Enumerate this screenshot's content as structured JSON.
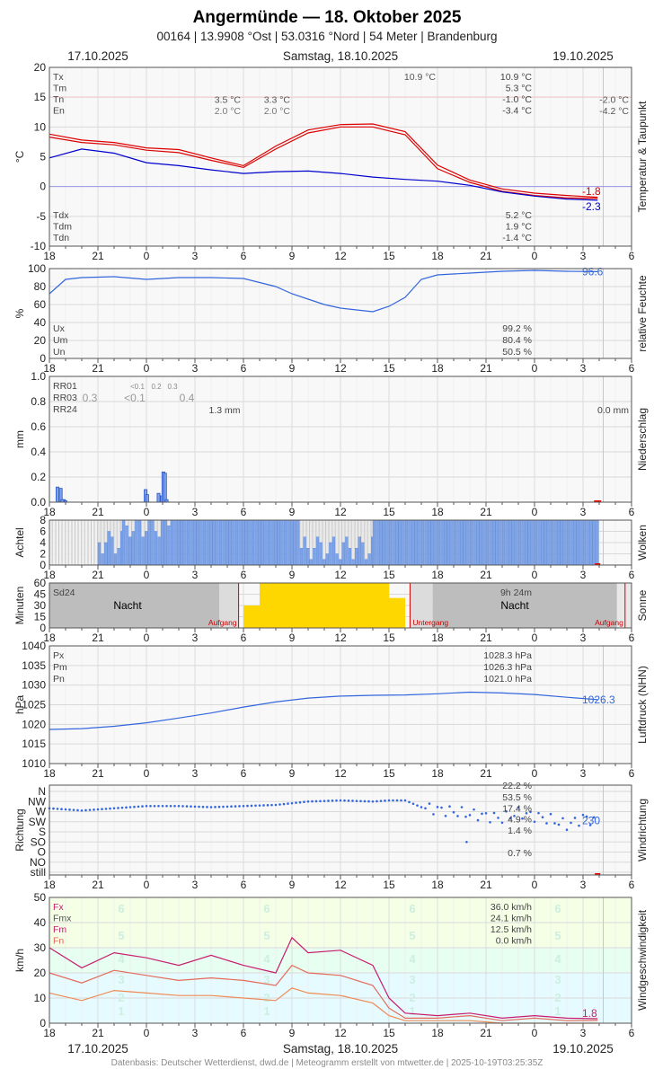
{
  "header": {
    "title": "Angermünde  —  18. Oktober 2025",
    "subtitle": "00164  |  13.9908 °Ost  |  53.0316 °Nord  |  54 Meter  |  Brandenburg",
    "date_left": "17.10.2025",
    "date_center": "Samstag, 18.10.2025",
    "date_right": "19.10.2025"
  },
  "footer": {
    "date_left": "17.10.2025",
    "date_center": "Samstag, 18.10.2025",
    "date_right": "19.10.2025",
    "credits": "Datenbasis: Deutscher Wetterdienst, dwd.de | Meteogramm erstellt von mtwetter.de | 2025-10-19T03:25:35Z"
  },
  "colors": {
    "temp": "#dd0000",
    "dew": "#0000cc",
    "blue": "#3366dd",
    "cloud": "#7ea4e6",
    "sun": "#ffd700",
    "night": "#bdbdbd",
    "gust": "#c81c6e",
    "mean_wind": "#e46a5a",
    "grid": "#d9d9d9"
  },
  "chart_data": [
    {
      "type": "line",
      "name": "temperature",
      "side_label": "Temperatur & Taupunkt",
      "ylabel": "°C",
      "ylim": [
        -10,
        20
      ],
      "yticks": [
        -10,
        -5,
        0,
        5,
        10,
        15,
        20
      ],
      "x": [
        -6,
        -4,
        -2,
        0,
        2,
        4,
        6,
        8,
        10,
        12,
        14,
        16,
        18,
        20,
        22,
        24,
        26,
        27.9
      ],
      "x_tick_labels": [
        "18",
        "21",
        "0",
        "3",
        "6",
        "9",
        "12",
        "15",
        "18",
        "21",
        "0",
        "3",
        "6"
      ],
      "series": [
        {
          "values": [
            8.8,
            7.8,
            7.4,
            6.5,
            6.2,
            4.8,
            3.5,
            6.8,
            9.5,
            10.4,
            10.5,
            9.2,
            3.6,
            1.1,
            -0.4,
            -1.1,
            -1.5,
            -1.8
          ],
          "color": "#dd0000"
        },
        {
          "values": [
            8.3,
            7.4,
            7.0,
            6.1,
            5.7,
            4.4,
            3.2,
            6.3,
            9.0,
            10.0,
            10.0,
            8.7,
            3.0,
            0.7,
            -0.8,
            -1.5,
            -1.9,
            -2.0
          ],
          "color": "#dd0000"
        },
        {
          "values": [
            4.8,
            6.3,
            5.6,
            4.0,
            3.5,
            2.8,
            2.2,
            2.5,
            2.6,
            2.2,
            1.6,
            1.2,
            0.9,
            0.2,
            -0.9,
            -1.6,
            -2.1,
            -2.3
          ],
          "color": "#0000cc"
        }
      ],
      "end_labels": [
        "-1.8",
        "-2.3"
      ],
      "legend_keys": [
        "Tx",
        "Tm",
        "Tn",
        "En"
      ],
      "prev_values": {
        "tn": "3.5 °C",
        "en": "2.0 °C",
        "tn2": "3.3 °C",
        "en2": "2.0 °C"
      },
      "day_max": "10.9 °C",
      "summary": [
        "10.9 °C",
        "5.3 °C",
        "-1.0 °C",
        "-3.4 °C"
      ],
      "next_values": [
        "-2.0 °C",
        "-4.2 °C"
      ],
      "dew_keys": [
        "Tdx",
        "Tdm",
        "Tdn"
      ],
      "dew_summary": [
        "5.2 °C",
        "1.9 °C",
        "-1.4 °C"
      ]
    },
    {
      "type": "line",
      "name": "humidity",
      "side_label": "relative Feuchte",
      "ylabel": "%",
      "ylim": [
        0,
        100
      ],
      "yticks": [
        0,
        20,
        40,
        60,
        80,
        100
      ],
      "x": [
        -6,
        -5,
        -4,
        -2,
        0,
        2,
        4,
        6,
        8,
        9,
        10,
        11,
        12,
        13,
        14,
        15,
        16,
        17,
        18,
        20,
        22,
        24,
        26,
        27.9
      ],
      "x_tick_labels": [
        "18",
        "21",
        "0",
        "3",
        "6",
        "9",
        "12",
        "15",
        "18",
        "21",
        "0",
        "3",
        "6"
      ],
      "series": [
        {
          "values": [
            72,
            88,
            90,
            91,
            88,
            90,
            90,
            89,
            80,
            72,
            66,
            60,
            56,
            54,
            52,
            58,
            68,
            88,
            93,
            95,
            97,
            98,
            97,
            96.6
          ],
          "color": "#3366dd"
        }
      ],
      "end_label": "96.6",
      "legend_keys": [
        "Ux",
        "Um",
        "Un"
      ],
      "summary": [
        "99.2 %",
        "80.4 %",
        "50.5 %"
      ]
    },
    {
      "type": "bar",
      "name": "precipitation",
      "side_label": "Niederschlag",
      "ylabel": "mm",
      "ylim": [
        0,
        1.0
      ],
      "yticks": [
        "0.0",
        "0.2",
        "0.4",
        "0.6",
        "0.8",
        "1.0"
      ],
      "x": [
        -5.5,
        -5.3,
        -5.1,
        -5.0,
        -5.2,
        -0.05,
        0.05,
        0.75,
        0.95,
        1.05,
        1.15,
        1.25
      ],
      "values": [
        0.12,
        0.11,
        0.02,
        0.01,
        0.02,
        0.1,
        0.06,
        0.07,
        0.05,
        0.24,
        0.23,
        0.02
      ],
      "x_tick_labels": [
        "18",
        "21",
        "0",
        "3",
        "6",
        "9",
        "12",
        "15",
        "18",
        "21",
        "0",
        "3",
        "6"
      ],
      "legend_keys": [
        "RR01",
        "RR03",
        "RR24"
      ],
      "rr03_values": [
        "0.3",
        "<0.1",
        "0.4"
      ],
      "rr01_values": [
        "<0.1",
        "0.2",
        "0.3"
      ],
      "rr24_values": [
        "1.3 mm",
        "0.0 mm"
      ]
    },
    {
      "type": "bar",
      "name": "clouds",
      "side_label": "Wolken",
      "ylabel": "Achtel",
      "ylim": [
        0,
        8
      ],
      "yticks": [
        0,
        2,
        4,
        6,
        8
      ],
      "x_tick_labels": [
        "18",
        "21",
        "0",
        "3",
        "6",
        "9",
        "12",
        "15",
        "18",
        "21",
        "0",
        "3",
        "6"
      ],
      "segments": [
        {
          "x": [
            -6,
            -3
          ],
          "value": 8,
          "kind": "clear"
        },
        {
          "x": [
            -3,
            -1.5
          ],
          "value": 4,
          "kind": "mixed"
        },
        {
          "x": [
            -1.5,
            1.5
          ],
          "value": 7,
          "kind": "mixed"
        },
        {
          "x": [
            1.5,
            9.5
          ],
          "value": 8,
          "kind": "cover"
        },
        {
          "x": [
            9.5,
            14
          ],
          "value": 3,
          "kind": "mixed"
        },
        {
          "x": [
            14,
            27.9
          ],
          "value": 8,
          "kind": "cover"
        }
      ]
    },
    {
      "type": "bar",
      "name": "sunshine",
      "side_label": "Sonne",
      "ylabel": "Minuten",
      "ylim": [
        0,
        60
      ],
      "yticks": [
        0,
        15,
        30,
        45,
        60
      ],
      "x_tick_labels": [
        "18",
        "21",
        "0",
        "3",
        "6",
        "9",
        "12",
        "15",
        "18",
        "21",
        "0",
        "3",
        "6"
      ],
      "legend_key": "Sd24",
      "summary": "9h 24m",
      "night_label": "Nacht",
      "sunrise_label": "Aufgang",
      "sunset_label": "Untergang",
      "sunrise": 5.7,
      "sunset": 16.3,
      "sun_hours": [
        {
          "x": [
            6,
            7
          ],
          "value": 30
        },
        {
          "x": [
            7,
            15
          ],
          "value": 60
        },
        {
          "x": [
            15,
            16
          ],
          "value": 40
        }
      ]
    },
    {
      "type": "line",
      "name": "pressure",
      "side_label": "Luftdruck (NHN)",
      "ylabel": "hPa",
      "ylim": [
        1010,
        1040
      ],
      "yticks": [
        1010,
        1015,
        1020,
        1025,
        1030,
        1035,
        1040
      ],
      "x": [
        -6,
        -4,
        -2,
        0,
        2,
        4,
        6,
        8,
        10,
        12,
        14,
        16,
        18,
        20,
        22,
        24,
        26,
        27.9
      ],
      "x_tick_labels": [
        "18",
        "21",
        "0",
        "3",
        "6",
        "9",
        "12",
        "15",
        "18",
        "21",
        "0",
        "3",
        "6"
      ],
      "series": [
        {
          "values": [
            1018.7,
            1018.9,
            1019.5,
            1020.4,
            1021.6,
            1022.9,
            1024.4,
            1025.7,
            1026.7,
            1027.2,
            1027.4,
            1027.5,
            1027.8,
            1028.2,
            1028.0,
            1027.6,
            1026.9,
            1026.3
          ],
          "color": "#3366dd"
        }
      ],
      "end_label": "1026.3",
      "legend_keys": [
        "Px",
        "Pm",
        "Pn"
      ],
      "summary": [
        "1028.3 hPa",
        "1026.3 hPa",
        "1021.0 hPa"
      ]
    },
    {
      "type": "scatter",
      "name": "wind_direction",
      "side_label": "Windrichtung",
      "ylabel": "Richtung",
      "yticks": [
        "still",
        "NO",
        "O",
        "SO",
        "S",
        "SW",
        "W",
        "NW",
        "N"
      ],
      "x_tick_labels": [
        "18",
        "21",
        "0",
        "3",
        "6",
        "9",
        "12",
        "15",
        "18",
        "21",
        "0",
        "3",
        "6"
      ],
      "x": [
        -6,
        -4,
        -2,
        0,
        2,
        4,
        6,
        8,
        10,
        12,
        14,
        15,
        16,
        17,
        18,
        19,
        20,
        21,
        22,
        23,
        24,
        25,
        26,
        27,
        27.9
      ],
      "values": [
        285,
        275,
        285,
        295,
        295,
        290,
        295,
        300,
        315,
        320,
        315,
        320,
        320,
        290,
        280,
        270,
        260,
        250,
        240,
        265,
        250,
        235,
        210,
        240,
        230
      ],
      "end_label": "230",
      "summary": [
        "22.2 %",
        "53.5 %",
        "17.4 %",
        "4.9 %",
        "1.4 %",
        "0.7 %"
      ]
    },
    {
      "type": "line",
      "name": "wind_speed",
      "side_label": "Windgeschwindigkeit",
      "ylabel": "km/h",
      "ylim": [
        0,
        50
      ],
      "yticks": [
        0,
        10,
        20,
        30,
        40,
        50
      ],
      "x": [
        -6,
        -4,
        -2,
        0,
        2,
        4,
        6,
        8,
        9,
        10,
        12,
        14,
        15,
        16,
        18,
        20,
        22,
        24,
        26,
        27.9
      ],
      "x_tick_labels": [
        "18",
        "21",
        "0",
        "3",
        "6",
        "9",
        "12",
        "15",
        "18",
        "21",
        "0",
        "3",
        "6"
      ],
      "series": [
        {
          "values": [
            30,
            22,
            28,
            26,
            23,
            27,
            23,
            20,
            34,
            28,
            29,
            23,
            10,
            4,
            3,
            4,
            2,
            3,
            2,
            1.8
          ],
          "color": "#c81c6e"
        },
        {
          "values": [
            20,
            16,
            21,
            19,
            17,
            18,
            17,
            15,
            23,
            20,
            19,
            15,
            6,
            2,
            2,
            3,
            1,
            2,
            1,
            1.1
          ],
          "color": "#e46a5a"
        },
        {
          "values": [
            12,
            9,
            13,
            12,
            11,
            11,
            10,
            9,
            14,
            12,
            11,
            8,
            3,
            1,
            1,
            1,
            0,
            0,
            0,
            0
          ],
          "color": "#f08a55"
        }
      ],
      "end_label": "1.8",
      "legend_keys": [
        "Fx",
        "Fmx",
        "Fm",
        "Fn"
      ],
      "summary": [
        "36.0 km/h",
        "24.1 km/h",
        "12.5 km/h",
        "0.0 km/h"
      ],
      "beaufort": [
        "1",
        "2",
        "3",
        "4",
        "5",
        "6"
      ]
    }
  ]
}
